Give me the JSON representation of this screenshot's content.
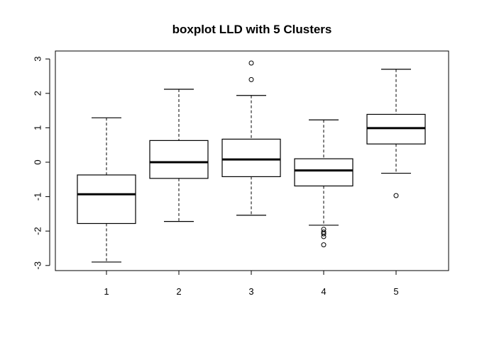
{
  "chart_data": {
    "type": "boxplot",
    "title": "boxplot LLD with 5 Clusters",
    "xlabel": "",
    "ylabel": "",
    "categories": [
      "1",
      "2",
      "3",
      "4",
      "5"
    ],
    "yticks": [
      -3,
      -2,
      -1,
      0,
      1,
      2,
      3
    ],
    "ytick_labels": [
      "-3",
      "-2",
      "-1",
      "0",
      "1",
      "2",
      "3"
    ],
    "ylim": [
      -3.13,
      3.08
    ],
    "boxes": [
      {
        "category": "1",
        "whisker_low": -2.9,
        "q1": -1.78,
        "median": -0.93,
        "q3": -0.37,
        "whisker_high": 1.29,
        "outliers": []
      },
      {
        "category": "2",
        "whisker_low": -1.72,
        "q1": -0.47,
        "median": 0.0,
        "q3": 0.63,
        "whisker_high": 2.12,
        "outliers": []
      },
      {
        "category": "3",
        "whisker_low": -1.54,
        "q1": -0.42,
        "median": 0.08,
        "q3": 0.67,
        "whisker_high": 1.94,
        "outliers": [
          2.4,
          2.88
        ]
      },
      {
        "category": "4",
        "whisker_low": -1.83,
        "q1": -0.69,
        "median": -0.24,
        "q3": 0.1,
        "whisker_high": 1.23,
        "outliers": [
          -1.95,
          -2.03,
          -2.08,
          -2.16,
          -2.4
        ]
      },
      {
        "category": "5",
        "whisker_low": -0.32,
        "q1": 0.53,
        "median": 0.99,
        "q3": 1.39,
        "whisker_high": 2.7,
        "outliers": [
          -0.97
        ]
      }
    ],
    "grid": false,
    "legend": "none"
  }
}
